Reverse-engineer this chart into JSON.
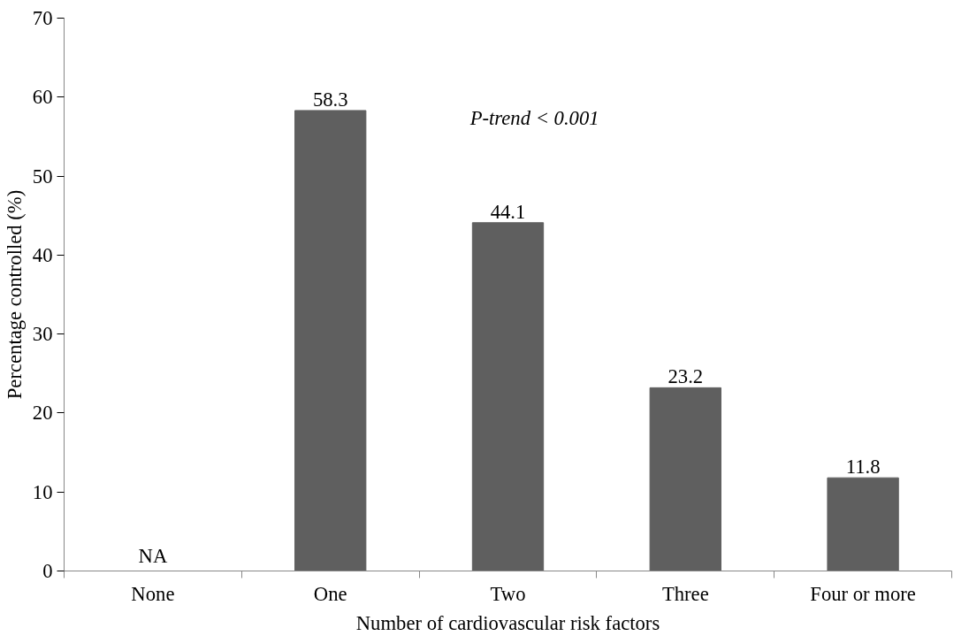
{
  "chart_data": {
    "type": "bar",
    "categories": [
      "None",
      "One",
      "Two",
      "Three",
      "Four or more"
    ],
    "values": [
      null,
      58.3,
      44.1,
      23.2,
      11.8
    ],
    "value_labels": [
      "NA",
      "58.3",
      "44.1",
      "23.2",
      "11.8"
    ],
    "color": "#5f5f5f",
    "xlabel": "Number of cardiovascular risk factors",
    "ylabel": "Percentage controlled (%)",
    "annotations": [
      "P-trend < 0.001"
    ],
    "ylim": [
      0,
      70
    ],
    "yticks": [
      0,
      10,
      20,
      30,
      40,
      50,
      60,
      70
    ],
    "grid": false
  }
}
